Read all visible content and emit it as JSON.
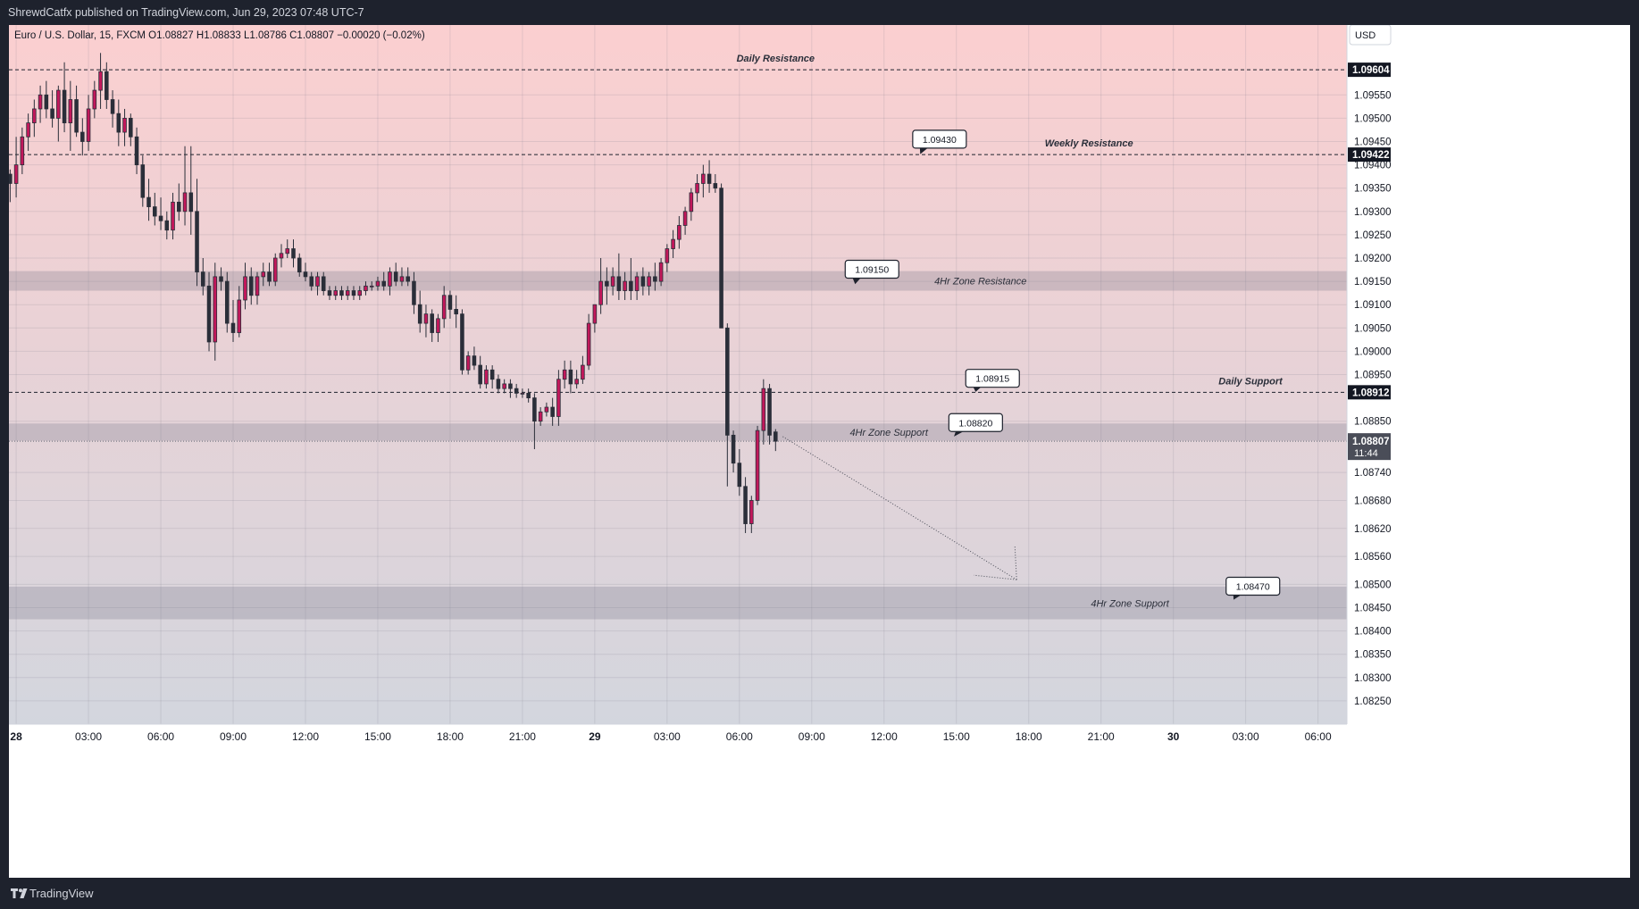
{
  "header": {
    "published_text": "ShrewdCatfx published on TradingView.com, Jun 29, 2023 07:48 UTC-7"
  },
  "footer": {
    "logo_text": "TradingView",
    "logo_icon": "tradingview-logo-icon"
  },
  "chart_data": {
    "type": "candlestick",
    "symbol_title": "Euro / U.S. Dollar, 15, FXCM",
    "ohlc_text": {
      "open": "O1.08827",
      "high": "H1.08833",
      "low": "L1.08786",
      "close": "C1.08807",
      "change": "−0.00020 (−0.02%)"
    },
    "currency": "USD",
    "x_range_hours": [
      -0.3,
      55.2
    ],
    "ylim": [
      1.082,
      1.097
    ],
    "y_ticks": [
      "1.09550",
      "1.09500",
      "1.09450",
      "1.09400",
      "1.09350",
      "1.09300",
      "1.09250",
      "1.09200",
      "1.09150",
      "1.09100",
      "1.09050",
      "1.09000",
      "1.08950",
      "1.08850",
      "1.08740",
      "1.08680",
      "1.08620",
      "1.08560",
      "1.08500",
      "1.08450",
      "1.08400",
      "1.08350",
      "1.08300",
      "1.08250"
    ],
    "y_tick_values": [
      1.0955,
      1.095,
      1.0945,
      1.094,
      1.0935,
      1.093,
      1.0925,
      1.092,
      1.0915,
      1.091,
      1.0905,
      1.09,
      1.0895,
      1.0885,
      1.0874,
      1.0868,
      1.0862,
      1.0856,
      1.085,
      1.0845,
      1.084,
      1.0835,
      1.083,
      1.0825
    ],
    "x_ticks": [
      {
        "label": "28",
        "h": 0,
        "bold": true
      },
      {
        "label": "03:00",
        "h": 3
      },
      {
        "label": "06:00",
        "h": 6
      },
      {
        "label": "09:00",
        "h": 9
      },
      {
        "label": "12:00",
        "h": 12
      },
      {
        "label": "15:00",
        "h": 15
      },
      {
        "label": "18:00",
        "h": 18
      },
      {
        "label": "21:00",
        "h": 21
      },
      {
        "label": "29",
        "h": 24,
        "bold": true
      },
      {
        "label": "03:00",
        "h": 27
      },
      {
        "label": "06:00",
        "h": 30
      },
      {
        "label": "09:00",
        "h": 33
      },
      {
        "label": "12:00",
        "h": 36
      },
      {
        "label": "15:00",
        "h": 39
      },
      {
        "label": "18:00",
        "h": 42
      },
      {
        "label": "21:00",
        "h": 45
      },
      {
        "label": "30",
        "h": 48,
        "bold": true
      },
      {
        "label": "03:00",
        "h": 51
      },
      {
        "label": "06:00",
        "h": 54
      }
    ],
    "level_lines": [
      {
        "price": 1.09604,
        "label": "Daily Resistance",
        "label_h": 31.5,
        "price_label": "1.09604"
      },
      {
        "price": 1.09422,
        "label": "Weekly Resistance",
        "label_h": 44.5,
        "price_label": "1.09422"
      },
      {
        "price": 1.08912,
        "label": "Daily Support",
        "label_h": 51.2,
        "price_label": "1.08912"
      }
    ],
    "zones": [
      {
        "top": 1.09172,
        "bottom": 1.0913,
        "label": "4Hr Zone Resistance",
        "label_h": 40
      },
      {
        "top": 1.08845,
        "bottom": 1.08808,
        "label": "4Hr Zone Support",
        "label_h": 36.2
      },
      {
        "top": 1.08495,
        "bottom": 1.08425,
        "label": "4Hr Zone Support",
        "label_h": 46.2
      }
    ],
    "callouts": [
      {
        "text": "1.09430",
        "box_h": 38.3,
        "box_price": 1.09455,
        "tip_h": 37.5,
        "tip_price": 1.09423
      },
      {
        "text": "1.09150",
        "box_h": 35.5,
        "box_price": 1.09176,
        "tip_h": 34.8,
        "tip_price": 1.09144
      },
      {
        "text": "1.08915",
        "box_h": 40.5,
        "box_price": 1.08942,
        "tip_h": 39.8,
        "tip_price": 1.08913
      },
      {
        "text": "1.08820",
        "box_h": 39.8,
        "box_price": 1.08847,
        "tip_h": 38.9,
        "tip_price": 1.08817
      },
      {
        "text": "1.08470",
        "box_h": 51.3,
        "box_price": 1.08496,
        "tip_h": 50.5,
        "tip_price": 1.08467
      }
    ],
    "projection": {
      "from": [
        31.8,
        1.08817
      ],
      "to": [
        41.5,
        1.0851
      ]
    },
    "current_price": {
      "value": "1.08807",
      "countdown": "11:44",
      "price": 1.08807
    },
    "candles": [
      [
        -0.25,
        1.0938,
        1.0939,
        1.0932,
        1.0936
      ],
      [
        0.0,
        1.0936,
        1.0946,
        1.0933,
        1.094
      ],
      [
        0.25,
        1.094,
        1.0948,
        1.0938,
        1.0946
      ],
      [
        0.5,
        1.0946,
        1.0951,
        1.0943,
        1.0949
      ],
      [
        0.75,
        1.0949,
        1.0954,
        1.0946,
        1.0952
      ],
      [
        1.0,
        1.0952,
        1.0957,
        1.0949,
        1.0955
      ],
      [
        1.25,
        1.0955,
        1.0958,
        1.095,
        1.0952
      ],
      [
        1.5,
        1.0952,
        1.0956,
        1.0948,
        1.095
      ],
      [
        1.75,
        1.095,
        1.0957,
        1.0945,
        1.0956
      ],
      [
        2.0,
        1.0956,
        1.0962,
        1.0947,
        1.0949
      ],
      [
        2.25,
        1.0949,
        1.0958,
        1.0943,
        1.0954
      ],
      [
        2.5,
        1.0954,
        1.0957,
        1.0946,
        1.0947
      ],
      [
        2.75,
        1.0947,
        1.095,
        1.0942,
        1.0945
      ],
      [
        3.0,
        1.0945,
        1.0955,
        1.0943,
        1.0952
      ],
      [
        3.25,
        1.0952,
        1.0958,
        1.095,
        1.0956
      ],
      [
        3.5,
        1.0956,
        1.0964,
        1.0952,
        1.096
      ],
      [
        3.75,
        1.096,
        1.0962,
        1.0952,
        1.0954
      ],
      [
        4.0,
        1.0954,
        1.0956,
        1.0948,
        1.0951
      ],
      [
        4.25,
        1.0951,
        1.0954,
        1.0944,
        1.0947
      ],
      [
        4.5,
        1.0947,
        1.0952,
        1.0944,
        1.095
      ],
      [
        4.75,
        1.095,
        1.0951,
        1.0944,
        1.0946
      ],
      [
        5.0,
        1.0946,
        1.0948,
        1.0938,
        1.094
      ],
      [
        5.25,
        1.094,
        1.0942,
        1.0931,
        1.0933
      ],
      [
        5.5,
        1.0933,
        1.0937,
        1.0928,
        1.0931
      ],
      [
        5.75,
        1.0931,
        1.0934,
        1.0927,
        1.0929
      ],
      [
        6.0,
        1.0929,
        1.0933,
        1.0926,
        1.0928
      ],
      [
        6.25,
        1.0928,
        1.093,
        1.0924,
        1.0926
      ],
      [
        6.5,
        1.0926,
        1.0934,
        1.0924,
        1.0932
      ],
      [
        6.75,
        1.0932,
        1.0936,
        1.0928,
        1.093
      ],
      [
        7.0,
        1.093,
        1.0944,
        1.0927,
        1.0934
      ],
      [
        7.25,
        1.0934,
        1.0944,
        1.0925,
        1.093
      ],
      [
        7.5,
        1.093,
        1.0937,
        1.0914,
        1.0917
      ],
      [
        7.75,
        1.0917,
        1.092,
        1.0912,
        1.0914
      ],
      [
        8.0,
        1.0914,
        1.0917,
        1.09,
        1.0902
      ],
      [
        8.25,
        1.0902,
        1.0919,
        1.0898,
        1.0916
      ],
      [
        8.5,
        1.0916,
        1.0918,
        1.0913,
        1.0915
      ],
      [
        8.75,
        1.0915,
        1.0917,
        1.0904,
        1.0906
      ],
      [
        9.0,
        1.0906,
        1.0911,
        1.0902,
        1.0904
      ],
      [
        9.25,
        1.0904,
        1.0914,
        1.0903,
        1.0911
      ],
      [
        9.5,
        1.0911,
        1.0919,
        1.0909,
        1.0916
      ],
      [
        9.75,
        1.0916,
        1.0918,
        1.091,
        1.0912
      ],
      [
        10.0,
        1.0912,
        1.0917,
        1.091,
        1.0916
      ],
      [
        10.25,
        1.0916,
        1.0919,
        1.0914,
        1.0917
      ],
      [
        10.5,
        1.0917,
        1.0919,
        1.0914,
        1.0915
      ],
      [
        10.75,
        1.0915,
        1.0921,
        1.0914,
        1.092
      ],
      [
        11.0,
        1.092,
        1.0923,
        1.0918,
        1.0921
      ],
      [
        11.25,
        1.0921,
        1.0924,
        1.092,
        1.0922
      ],
      [
        11.5,
        1.0922,
        1.0924,
        1.0918,
        1.092
      ],
      [
        11.75,
        1.092,
        1.0921,
        1.0916,
        1.0917
      ],
      [
        12.0,
        1.0917,
        1.0919,
        1.0915,
        1.0916
      ],
      [
        12.25,
        1.0916,
        1.0917,
        1.0913,
        1.0914
      ],
      [
        12.5,
        1.0914,
        1.0917,
        1.0912,
        1.0916
      ],
      [
        12.75,
        1.0916,
        1.0917,
        1.0912,
        1.0913
      ],
      [
        13.0,
        1.0913,
        1.0914,
        1.0911,
        1.0912
      ],
      [
        13.25,
        1.0912,
        1.0914,
        1.0911,
        1.0913
      ],
      [
        13.5,
        1.0913,
        1.0914,
        1.0911,
        1.0912
      ],
      [
        13.75,
        1.0912,
        1.0914,
        1.0911,
        1.0913
      ],
      [
        14.0,
        1.0913,
        1.0914,
        1.0911,
        1.0912
      ],
      [
        14.25,
        1.0912,
        1.0914,
        1.0911,
        1.0913
      ],
      [
        14.5,
        1.0913,
        1.0915,
        1.0912,
        1.0914
      ],
      [
        14.75,
        1.0914,
        1.0915,
        1.0913,
        1.0914
      ],
      [
        15.0,
        1.0914,
        1.0916,
        1.0913,
        1.0915
      ],
      [
        15.25,
        1.0915,
        1.0917,
        1.0913,
        1.0914
      ],
      [
        15.5,
        1.0914,
        1.0918,
        1.0912,
        1.0917
      ],
      [
        15.75,
        1.0917,
        1.0919,
        1.0914,
        1.0915
      ],
      [
        16.0,
        1.0915,
        1.0918,
        1.0914,
        1.0916
      ],
      [
        16.25,
        1.0916,
        1.0918,
        1.0914,
        1.0915
      ],
      [
        16.5,
        1.0915,
        1.0917,
        1.0908,
        1.091
      ],
      [
        16.75,
        1.091,
        1.0913,
        1.0904,
        1.0906
      ],
      [
        17.0,
        1.0906,
        1.091,
        1.0903,
        1.0908
      ],
      [
        17.25,
        1.0908,
        1.0909,
        1.0902,
        1.0904
      ],
      [
        17.5,
        1.0904,
        1.0908,
        1.0902,
        1.0907
      ],
      [
        17.75,
        1.0907,
        1.0914,
        1.0905,
        1.0912
      ],
      [
        18.0,
        1.0912,
        1.0913,
        1.0907,
        1.0909
      ],
      [
        18.25,
        1.0909,
        1.0912,
        1.0905,
        1.0908
      ],
      [
        18.5,
        1.0908,
        1.0909,
        1.0895,
        1.0896
      ],
      [
        18.75,
        1.0896,
        1.09,
        1.0895,
        1.0899
      ],
      [
        19.0,
        1.0899,
        1.0901,
        1.0896,
        1.0897
      ],
      [
        19.25,
        1.0897,
        1.0899,
        1.0892,
        1.0893
      ],
      [
        19.5,
        1.0893,
        1.0897,
        1.0892,
        1.0896
      ],
      [
        19.75,
        1.0896,
        1.0897,
        1.0892,
        1.0894
      ],
      [
        20.0,
        1.0894,
        1.0895,
        1.0891,
        1.0892
      ],
      [
        20.25,
        1.0892,
        1.0894,
        1.0891,
        1.0893
      ],
      [
        20.5,
        1.0893,
        1.0894,
        1.089,
        1.0892
      ],
      [
        20.75,
        1.0892,
        1.0893,
        1.089,
        1.0891
      ],
      [
        21.0,
        1.0891,
        1.0892,
        1.089,
        1.0891
      ],
      [
        21.25,
        1.0891,
        1.0892,
        1.0889,
        1.089
      ],
      [
        21.5,
        1.089,
        1.0891,
        1.0879,
        1.0885
      ],
      [
        21.75,
        1.0885,
        1.0888,
        1.0884,
        1.0887
      ],
      [
        22.0,
        1.0887,
        1.0889,
        1.0886,
        1.0888
      ],
      [
        22.25,
        1.0888,
        1.089,
        1.0884,
        1.0886
      ],
      [
        22.5,
        1.0886,
        1.0896,
        1.0884,
        1.0894
      ],
      [
        22.75,
        1.0894,
        1.0898,
        1.0892,
        1.0896
      ],
      [
        23.0,
        1.0896,
        1.0898,
        1.0891,
        1.0893
      ],
      [
        23.25,
        1.0893,
        1.0896,
        1.0892,
        1.0894
      ],
      [
        23.5,
        1.0894,
        1.0899,
        1.0893,
        1.0897
      ],
      [
        23.75,
        1.0897,
        1.0908,
        1.0896,
        1.0906
      ],
      [
        24.0,
        1.0906,
        1.091,
        1.0904,
        1.091
      ],
      [
        24.25,
        1.091,
        1.092,
        1.0908,
        1.0915
      ],
      [
        24.5,
        1.0915,
        1.0918,
        1.091,
        1.0914
      ],
      [
        24.75,
        1.0914,
        1.0918,
        1.0912,
        1.0916
      ],
      [
        25.0,
        1.0916,
        1.0921,
        1.0911,
        1.0913
      ],
      [
        25.25,
        1.0913,
        1.0917,
        1.0911,
        1.0915
      ],
      [
        25.5,
        1.0915,
        1.092,
        1.0911,
        1.0913
      ],
      [
        25.75,
        1.0913,
        1.0917,
        1.0911,
        1.0916
      ],
      [
        26.0,
        1.0916,
        1.0918,
        1.0912,
        1.0914
      ],
      [
        26.25,
        1.0914,
        1.0917,
        1.0912,
        1.0916
      ],
      [
        26.5,
        1.0916,
        1.0919,
        1.0913,
        1.0915
      ],
      [
        26.75,
        1.0915,
        1.092,
        1.0914,
        1.0919
      ],
      [
        27.0,
        1.0919,
        1.0923,
        1.0917,
        1.0922
      ],
      [
        27.25,
        1.0922,
        1.0926,
        1.092,
        1.0924
      ],
      [
        27.5,
        1.0924,
        1.0929,
        1.0922,
        1.0927
      ],
      [
        27.75,
        1.0927,
        1.0931,
        1.0925,
        1.093
      ],
      [
        28.0,
        1.093,
        1.0935,
        1.0928,
        1.0934
      ],
      [
        28.25,
        1.0934,
        1.0938,
        1.0932,
        1.0936
      ],
      [
        28.5,
        1.0936,
        1.094,
        1.0933,
        1.0938
      ],
      [
        28.75,
        1.0938,
        1.0941,
        1.0934,
        1.0936
      ],
      [
        29.0,
        1.0936,
        1.0938,
        1.0934,
        1.0935
      ],
      [
        29.25,
        1.0935,
        1.0936,
        1.0905,
        1.0905
      ],
      [
        29.5,
        1.0905,
        1.0906,
        1.0871,
        1.0882
      ],
      [
        29.75,
        1.0882,
        1.0883,
        1.0874,
        1.0876
      ],
      [
        30.0,
        1.0876,
        1.0879,
        1.0869,
        1.0871
      ],
      [
        30.25,
        1.0871,
        1.0873,
        1.0861,
        1.0863
      ],
      [
        30.5,
        1.0863,
        1.0869,
        1.0861,
        1.0868
      ],
      [
        30.75,
        1.0868,
        1.0884,
        1.0867,
        1.0883
      ],
      [
        31.0,
        1.0883,
        1.0894,
        1.088,
        1.0892
      ],
      [
        31.25,
        1.0892,
        1.0893,
        1.088,
        1.0882
      ],
      [
        31.5,
        1.08827,
        1.08833,
        1.08786,
        1.08807
      ]
    ]
  }
}
